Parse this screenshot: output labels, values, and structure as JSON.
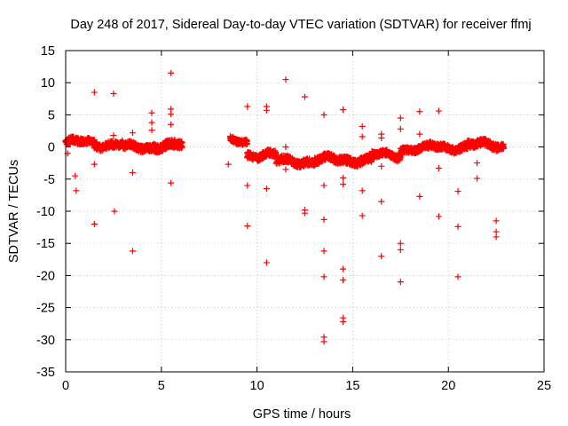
{
  "chart_data": {
    "type": "scatter",
    "title": "Day 248 of 2017, Sidereal Day-to-day VTEC variation (SDTVAR) for receiver ffmj",
    "xlabel": "GPS time / hours",
    "ylabel": "SDTVAR / TECUs",
    "xlim": [
      0,
      25
    ],
    "ylim": [
      -35,
      15
    ],
    "xticks": [
      0,
      5,
      10,
      15,
      20,
      25
    ],
    "yticks": [
      -35,
      -30,
      -25,
      -20,
      -15,
      -10,
      -5,
      0,
      5,
      10,
      15
    ],
    "xtick_labels": [
      "0",
      "5",
      "10",
      "15",
      "20",
      "25"
    ],
    "ytick_labels": [
      "-35",
      "-30",
      "-25",
      "-20",
      "-15",
      "-10",
      "-5",
      "0",
      "5",
      "10",
      "15"
    ],
    "grid": true,
    "marker": "+",
    "color": "#ff0000",
    "main_band": [
      {
        "x_start": 0.0,
        "x_end": 1.5,
        "center": 0.7,
        "spread": 1.0
      },
      {
        "x_start": 1.5,
        "x_end": 3.0,
        "center": 0.4,
        "spread": 1.0
      },
      {
        "x_start": 3.0,
        "x_end": 4.5,
        "center": -0.1,
        "spread": 1.0
      },
      {
        "x_start": 4.5,
        "x_end": 6.1,
        "center": 0.2,
        "spread": 1.2
      },
      {
        "x_start": 8.6,
        "x_end": 9.5,
        "center": 0.8,
        "spread": 0.8
      },
      {
        "x_start": 9.5,
        "x_end": 11.0,
        "center": -1.2,
        "spread": 1.0
      },
      {
        "x_start": 11.0,
        "x_end": 13.0,
        "center": -2.2,
        "spread": 1.1
      },
      {
        "x_start": 13.0,
        "x_end": 16.0,
        "center": -2.0,
        "spread": 1.1
      },
      {
        "x_start": 16.0,
        "x_end": 17.5,
        "center": -1.3,
        "spread": 0.9
      },
      {
        "x_start": 17.5,
        "x_end": 19.0,
        "center": -0.3,
        "spread": 0.9
      },
      {
        "x_start": 19.0,
        "x_end": 21.0,
        "center": 0.0,
        "spread": 1.0
      },
      {
        "x_start": 21.0,
        "x_end": 22.9,
        "center": 0.3,
        "spread": 1.1
      }
    ],
    "outliers": [
      {
        "x": 0.1,
        "y": -1.0
      },
      {
        "x": 0.5,
        "y": -4.5
      },
      {
        "x": 0.55,
        "y": -6.8
      },
      {
        "x": 1.5,
        "y": 8.5
      },
      {
        "x": 1.5,
        "y": -2.7
      },
      {
        "x": 1.5,
        "y": -12.0
      },
      {
        "x": 2.5,
        "y": 8.3
      },
      {
        "x": 2.5,
        "y": 1.8
      },
      {
        "x": 2.55,
        "y": -10.0
      },
      {
        "x": 3.5,
        "y": 2.2
      },
      {
        "x": 3.5,
        "y": -4.0
      },
      {
        "x": 3.5,
        "y": -16.2
      },
      {
        "x": 4.5,
        "y": 5.3
      },
      {
        "x": 4.5,
        "y": 3.8
      },
      {
        "x": 4.5,
        "y": 2.6
      },
      {
        "x": 5.5,
        "y": 11.5
      },
      {
        "x": 5.5,
        "y": 5.9
      },
      {
        "x": 5.5,
        "y": 5.1
      },
      {
        "x": 5.5,
        "y": 3.5
      },
      {
        "x": 5.5,
        "y": -5.6
      },
      {
        "x": 8.5,
        "y": -2.7
      },
      {
        "x": 9.5,
        "y": 6.3
      },
      {
        "x": 9.5,
        "y": -6.0
      },
      {
        "x": 9.5,
        "y": -12.3
      },
      {
        "x": 10.5,
        "y": 6.3
      },
      {
        "x": 10.5,
        "y": 5.7
      },
      {
        "x": 10.5,
        "y": -6.5
      },
      {
        "x": 10.5,
        "y": -18.0
      },
      {
        "x": 11.5,
        "y": 10.5
      },
      {
        "x": 11.5,
        "y": 0.0
      },
      {
        "x": 11.5,
        "y": -3.5
      },
      {
        "x": 12.5,
        "y": 7.8
      },
      {
        "x": 12.5,
        "y": -9.8
      },
      {
        "x": 12.5,
        "y": -10.3
      },
      {
        "x": 13.5,
        "y": 5.0
      },
      {
        "x": 13.5,
        "y": -6.0
      },
      {
        "x": 13.5,
        "y": -11.3
      },
      {
        "x": 13.5,
        "y": -16.2
      },
      {
        "x": 13.5,
        "y": -20.2
      },
      {
        "x": 13.5,
        "y": -29.6
      },
      {
        "x": 13.5,
        "y": -30.3
      },
      {
        "x": 14.5,
        "y": 5.8
      },
      {
        "x": 14.5,
        "y": -4.8
      },
      {
        "x": 14.5,
        "y": -5.8
      },
      {
        "x": 14.5,
        "y": -19.0
      },
      {
        "x": 14.5,
        "y": -20.7
      },
      {
        "x": 14.5,
        "y": -26.6
      },
      {
        "x": 14.5,
        "y": -27.2
      },
      {
        "x": 15.5,
        "y": 3.2
      },
      {
        "x": 15.5,
        "y": 1.6
      },
      {
        "x": 15.5,
        "y": -6.8
      },
      {
        "x": 15.5,
        "y": -10.7
      },
      {
        "x": 16.5,
        "y": 2.0
      },
      {
        "x": 16.5,
        "y": 1.4
      },
      {
        "x": 16.5,
        "y": -3.0
      },
      {
        "x": 16.5,
        "y": -8.5
      },
      {
        "x": 16.5,
        "y": -17.0
      },
      {
        "x": 17.5,
        "y": 4.5
      },
      {
        "x": 17.5,
        "y": 2.8
      },
      {
        "x": 17.5,
        "y": -15.0
      },
      {
        "x": 17.5,
        "y": -16.0
      },
      {
        "x": 17.5,
        "y": -21.0
      },
      {
        "x": 18.5,
        "y": 5.5
      },
      {
        "x": 18.5,
        "y": 2.0
      },
      {
        "x": 18.5,
        "y": -7.7
      },
      {
        "x": 19.5,
        "y": 5.6
      },
      {
        "x": 19.5,
        "y": -3.3
      },
      {
        "x": 19.5,
        "y": -10.8
      },
      {
        "x": 20.5,
        "y": -6.9
      },
      {
        "x": 20.5,
        "y": -12.4
      },
      {
        "x": 20.5,
        "y": -20.2
      },
      {
        "x": 21.5,
        "y": -2.5
      },
      {
        "x": 21.5,
        "y": -4.9
      },
      {
        "x": 22.5,
        "y": -11.5
      },
      {
        "x": 22.5,
        "y": -13.2
      },
      {
        "x": 22.5,
        "y": -14.0
      }
    ]
  }
}
